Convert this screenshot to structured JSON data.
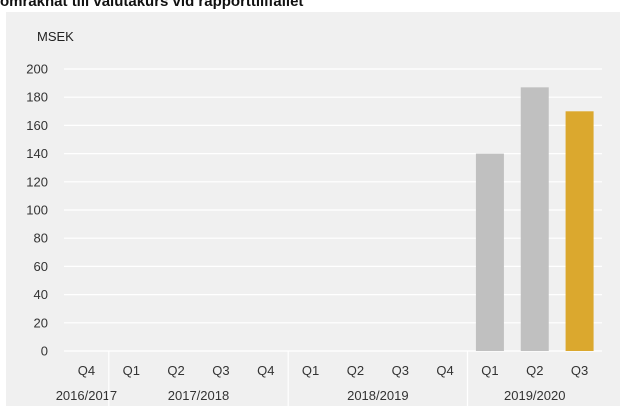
{
  "header": {
    "title": "omräknat till valutakurs vid rapporttillfället"
  },
  "chart_data": {
    "type": "bar",
    "unit_label": "MSEK",
    "ylim": [
      0,
      200
    ],
    "yticks": [
      0,
      20,
      40,
      60,
      80,
      100,
      120,
      140,
      160,
      180,
      200
    ],
    "grid": true,
    "categories": [
      "Q4",
      "Q1",
      "Q2",
      "Q3",
      "Q4",
      "Q1",
      "Q2",
      "Q3",
      "Q4",
      "Q1",
      "Q2",
      "Q3"
    ],
    "values": [
      null,
      null,
      null,
      null,
      null,
      null,
      null,
      null,
      null,
      140,
      187,
      170
    ],
    "groups": [
      {
        "label": "2016/2017",
        "count": 1
      },
      {
        "label": "2017/2018",
        "count": 4
      },
      {
        "label": "2018/2019",
        "count": 4
      },
      {
        "label": "2019/2020",
        "count": 3
      }
    ],
    "bar_colors": [
      "#c0c0c0",
      "#c0c0c0",
      "#c0c0c0",
      "#c0c0c0",
      "#c0c0c0",
      "#c0c0c0",
      "#c0c0c0",
      "#c0c0c0",
      "#c0c0c0",
      "#c0c0c0",
      "#c0c0c0",
      "#dba82e"
    ],
    "colors": {
      "background": "#f0f0f0",
      "grid": "#ffffff",
      "bar": "#c0c0c0",
      "highlight": "#dba82e"
    }
  }
}
